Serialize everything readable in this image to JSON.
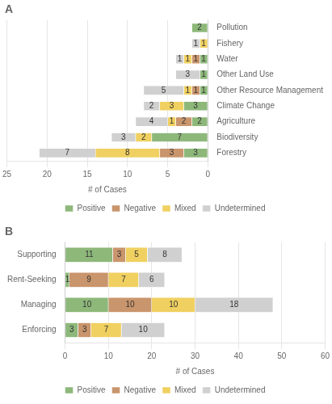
{
  "chart_data": [
    {
      "type": "bar",
      "title": "A",
      "orientation": "horizontal",
      "stacked": true,
      "data_labels": true,
      "grid": true,
      "legend": "bottom",
      "categories": [
        "Forestry",
        "Biodiversity",
        "Agriculture",
        "Climate Change",
        "Other Resource Management",
        "Other Land Use",
        "Water",
        "Fishery",
        "Pollution"
      ],
      "series": [
        {
          "name": "Positive",
          "color": "#8db87a",
          "values": [
            3,
            7,
            2,
            3,
            1,
            1,
            1,
            0,
            2
          ]
        },
        {
          "name": "Negative",
          "color": "#c9956c",
          "values": [
            3,
            0,
            2,
            0,
            1,
            0,
            1,
            0,
            0
          ]
        },
        {
          "name": "Mixed",
          "color": "#f0d060",
          "values": [
            8,
            2,
            1,
            3,
            1,
            0,
            1,
            1,
            0
          ]
        },
        {
          "name": "Undetermined",
          "color": "#d0d0d0",
          "values": [
            7,
            3,
            4,
            2,
            5,
            3,
            1,
            1,
            0
          ]
        }
      ],
      "xlabel": "# of Cases",
      "xlim": [
        25,
        0
      ],
      "xticks": [
        25,
        20,
        15,
        10,
        5,
        0
      ]
    },
    {
      "type": "bar",
      "title": "B",
      "orientation": "horizontal",
      "stacked": true,
      "data_labels": true,
      "grid": true,
      "legend": "bottom",
      "categories": [
        "Enforcing",
        "Managing",
        "Rent-Seeking",
        "Supporting"
      ],
      "series": [
        {
          "name": "Positive",
          "color": "#8db87a",
          "values": [
            3,
            10,
            1,
            11
          ]
        },
        {
          "name": "Negative",
          "color": "#c9956c",
          "values": [
            3,
            10,
            9,
            3
          ]
        },
        {
          "name": "Mixed",
          "color": "#f0d060",
          "values": [
            7,
            10,
            7,
            5
          ]
        },
        {
          "name": "Undetermined",
          "color": "#d0d0d0",
          "values": [
            10,
            18,
            6,
            8
          ]
        }
      ],
      "xlabel": "# of Cases",
      "xlim": [
        0,
        60
      ],
      "xticks": [
        0,
        10,
        20,
        30,
        40,
        50,
        60
      ]
    }
  ]
}
